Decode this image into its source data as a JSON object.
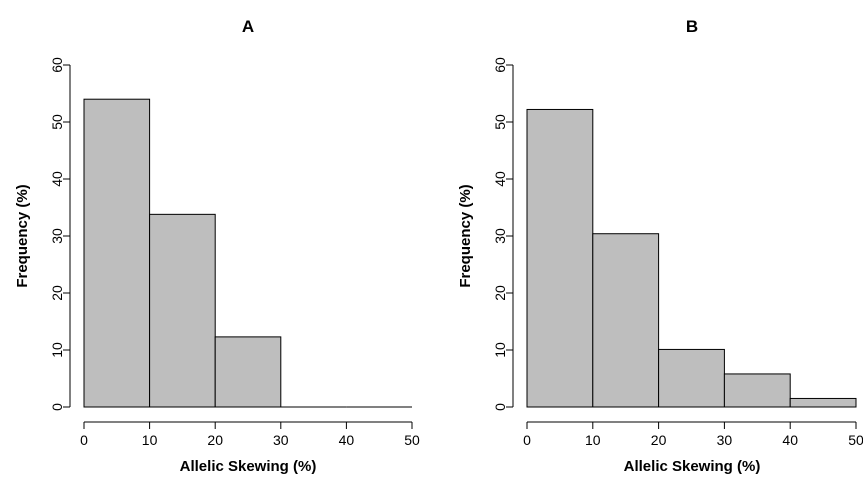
{
  "chart_data": [
    {
      "type": "bar",
      "title": "A",
      "xlabel": "Allelic Skewing (%)",
      "ylabel": "Frequency (%)",
      "xlim": [
        0,
        50
      ],
      "ylim": [
        0,
        60
      ],
      "xticks": [
        0,
        10,
        20,
        30,
        40,
        50
      ],
      "yticks": [
        0,
        10,
        20,
        30,
        40,
        50,
        60
      ],
      "bins": [
        [
          0,
          10
        ],
        [
          10,
          20
        ],
        [
          20,
          30
        ],
        [
          30,
          40
        ],
        [
          40,
          50
        ]
      ],
      "values": [
        54,
        33.8,
        12.3,
        0,
        0
      ],
      "bar_color": "#bebebe",
      "grid": false
    },
    {
      "type": "bar",
      "title": "B",
      "xlabel": "Allelic Skewing (%)",
      "ylabel": "Frequency (%)",
      "xlim": [
        0,
        50
      ],
      "ylim": [
        0,
        60
      ],
      "xticks": [
        0,
        10,
        20,
        30,
        40,
        50
      ],
      "yticks": [
        0,
        10,
        20,
        30,
        40,
        50,
        60
      ],
      "bins": [
        [
          0,
          10
        ],
        [
          10,
          20
        ],
        [
          20,
          30
        ],
        [
          30,
          40
        ],
        [
          40,
          50
        ]
      ],
      "values": [
        52.2,
        30.4,
        10.1,
        5.8,
        1.5
      ],
      "bar_color": "#bebebe",
      "grid": false
    }
  ]
}
